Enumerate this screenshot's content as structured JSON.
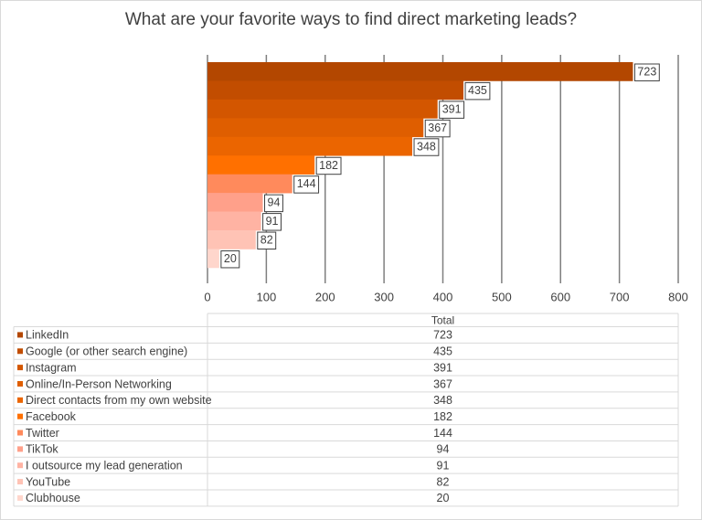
{
  "chart_data": {
    "type": "bar",
    "orientation": "horizontal",
    "title": "What are your favorite ways to find direct marketing leads?",
    "categories": [
      "LinkedIn",
      "Google (or other search engine)",
      "Instagram",
      "Online/In-Person Networking",
      "Direct contacts from my own website",
      "Facebook",
      "Twitter",
      "TikTok",
      "I outsource my lead generation",
      "YouTube",
      "Clubhouse"
    ],
    "series": [
      {
        "name": "Total",
        "values": [
          723,
          435,
          391,
          367,
          348,
          182,
          144,
          94,
          91,
          82,
          20
        ]
      }
    ],
    "colors": [
      "#b34700",
      "#c24d00",
      "#d35600",
      "#df5e00",
      "#eb6500",
      "#ff7000",
      "#ff8a5c",
      "#ffa08a",
      "#ffb3a3",
      "#ffc3b5",
      "#ffd6cc"
    ],
    "xlim": [
      0,
      800
    ],
    "xticks": [
      0,
      100,
      200,
      300,
      400,
      500,
      600,
      700,
      800
    ],
    "grid": true
  }
}
